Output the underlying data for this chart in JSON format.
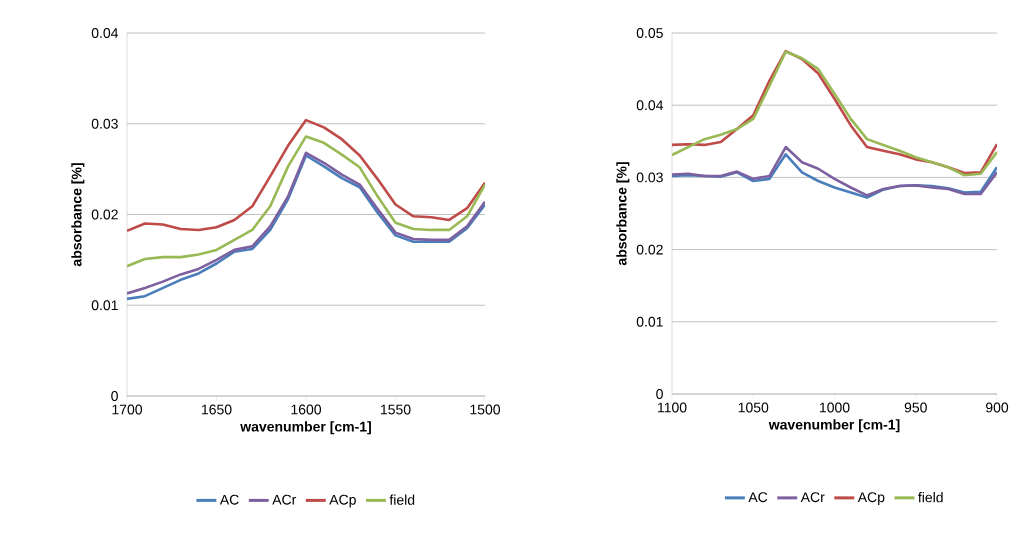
{
  "chart_data": [
    {
      "type": "line",
      "xlabel": "wavenumber [cm-1]",
      "ylabel": "absorbance [%]",
      "xlim": [
        1700,
        1500
      ],
      "ylim": [
        0,
        0.04
      ],
      "xticks": [
        1700,
        1650,
        1600,
        1550,
        1500
      ],
      "yticks": [
        0,
        0.01,
        0.02,
        0.03,
        0.04
      ],
      "grid": "y",
      "legend": "bottom",
      "marker": "none",
      "line_style": "solid",
      "x": [
        1700,
        1690,
        1680,
        1670,
        1660,
        1650,
        1640,
        1630,
        1620,
        1610,
        1600,
        1590,
        1580,
        1570,
        1560,
        1550,
        1540,
        1530,
        1520,
        1510,
        1500
      ],
      "series": [
        {
          "name": "AC",
          "color": "#4a7ebb",
          "values": [
            0.0107,
            0.011,
            0.0119,
            0.0128,
            0.0135,
            0.0146,
            0.0159,
            0.0162,
            0.0183,
            0.0217,
            0.0265,
            0.0253,
            0.024,
            0.023,
            0.0202,
            0.0177,
            0.017,
            0.017,
            0.017,
            0.0185,
            0.0211
          ]
        },
        {
          "name": "ACr",
          "color": "#7d60a0",
          "values": [
            0.0113,
            0.0119,
            0.0126,
            0.0134,
            0.014,
            0.015,
            0.0161,
            0.0165,
            0.0187,
            0.022,
            0.0268,
            0.0257,
            0.0244,
            0.0233,
            0.0206,
            0.018,
            0.0173,
            0.0172,
            0.0172,
            0.0187,
            0.0214
          ]
        },
        {
          "name": "ACp",
          "color": "#be4b48",
          "values": [
            0.0182,
            0.019,
            0.0189,
            0.0184,
            0.0183,
            0.0186,
            0.0194,
            0.0209,
            0.0242,
            0.0276,
            0.0304,
            0.0296,
            0.0283,
            0.0265,
            0.0239,
            0.0211,
            0.0198,
            0.0197,
            0.0194,
            0.0207,
            0.0235
          ]
        },
        {
          "name": "field",
          "color": "#98b954",
          "values": [
            0.0143,
            0.0151,
            0.0153,
            0.0153,
            0.0156,
            0.0161,
            0.0172,
            0.0183,
            0.0209,
            0.0253,
            0.0286,
            0.0279,
            0.0266,
            0.0252,
            0.022,
            0.0191,
            0.0184,
            0.0183,
            0.0183,
            0.0198,
            0.0233
          ]
        }
      ]
    },
    {
      "type": "line",
      "xlabel": "wavenumber [cm-1]",
      "ylabel": "absorbance [%]",
      "xlim": [
        1100,
        900
      ],
      "ylim": [
        0,
        0.05
      ],
      "xticks": [
        1100,
        1050,
        1000,
        950,
        900
      ],
      "yticks": [
        0,
        0.01,
        0.02,
        0.03,
        0.04,
        0.05
      ],
      "grid": "y",
      "legend": "bottom",
      "marker": "none",
      "line_style": "solid",
      "x": [
        1100,
        1090,
        1080,
        1070,
        1060,
        1050,
        1040,
        1030,
        1020,
        1010,
        1000,
        990,
        980,
        970,
        960,
        950,
        940,
        930,
        920,
        910,
        900
      ],
      "series": [
        {
          "name": "AC",
          "color": "#4a7ebb",
          "values": [
            0.0302,
            0.0303,
            0.0302,
            0.0301,
            0.0307,
            0.0295,
            0.0298,
            0.0332,
            0.0307,
            0.0295,
            0.0286,
            0.0279,
            0.0272,
            0.0283,
            0.0288,
            0.0289,
            0.0288,
            0.0285,
            0.0279,
            0.028,
            0.0314
          ]
        },
        {
          "name": "ACr",
          "color": "#7d60a0",
          "values": [
            0.0304,
            0.0305,
            0.0302,
            0.0302,
            0.0308,
            0.0298,
            0.0302,
            0.0342,
            0.0321,
            0.0312,
            0.0298,
            0.0286,
            0.0275,
            0.0284,
            0.0288,
            0.0289,
            0.0286,
            0.0284,
            0.0277,
            0.0277,
            0.0307
          ]
        },
        {
          "name": "ACp",
          "color": "#be4b48",
          "values": [
            0.0345,
            0.0346,
            0.0345,
            0.0349,
            0.0367,
            0.0386,
            0.0434,
            0.0475,
            0.0464,
            0.0444,
            0.0409,
            0.0372,
            0.0342,
            0.0337,
            0.0332,
            0.0325,
            0.0321,
            0.0314,
            0.0306,
            0.0307,
            0.0346
          ]
        },
        {
          "name": "field",
          "color": "#98b954",
          "values": [
            0.0331,
            0.0342,
            0.0353,
            0.0359,
            0.0367,
            0.0381,
            0.0427,
            0.0474,
            0.0465,
            0.045,
            0.0416,
            0.0381,
            0.0353,
            0.0345,
            0.0337,
            0.0328,
            0.0321,
            0.0314,
            0.0303,
            0.0305,
            0.0335
          ]
        }
      ]
    }
  ]
}
